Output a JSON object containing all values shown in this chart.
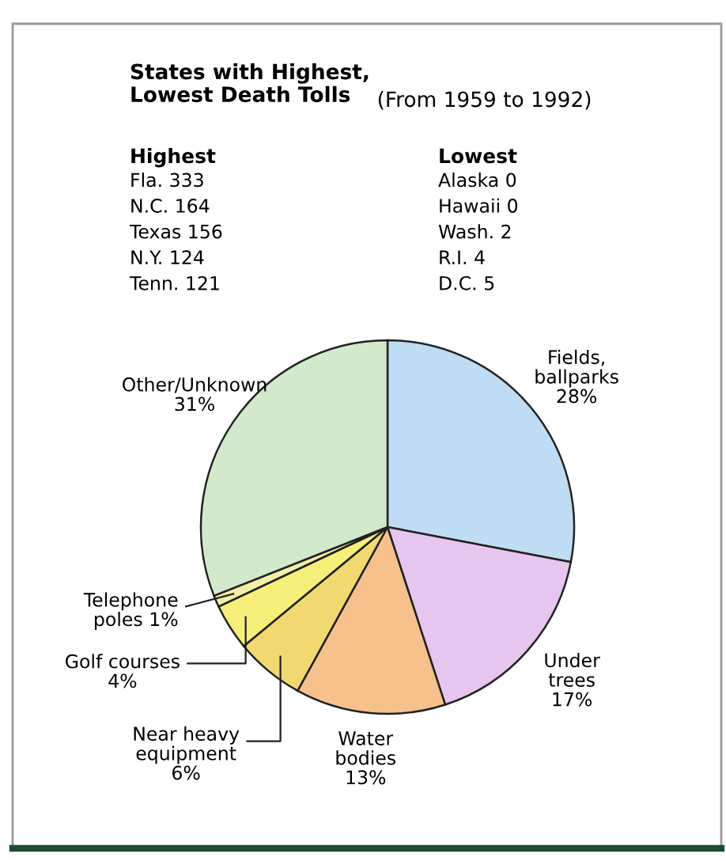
{
  "chart_data": [
    {
      "type": "other",
      "title": "States with Highest,\nLowest Death Tolls",
      "subtitle": "(From 1959 to 1992)",
      "annotations": [
        "Highest",
        "Fla. 333",
        "N.C. 164",
        "Texas 156",
        "N.Y. 124",
        "Tenn. 121",
        "Lowest",
        "Alaska 0",
        "Hawaii 0",
        "Wash. 2",
        "R.I. 4",
        "D.C. 5"
      ]
    },
    {
      "type": "pie",
      "categories": [
        "Fields,\nballparks",
        "Under\ntrees",
        "Water\nbodies",
        "Near heavy\nequipment",
        "Golf courses",
        "Telephone\npoles",
        "Other/Unknown"
      ],
      "values": [
        28,
        17,
        13,
        6,
        4,
        1,
        31
      ],
      "value_labels": [
        "28%",
        "17%",
        "13%",
        "6%",
        "4%",
        "1%",
        "31%"
      ],
      "colors": [
        "#bfdcf3",
        "#e6c6ef",
        "#f7c18e",
        "#f1d870",
        "#f7ef7a",
        "#f2eea8",
        "#d2e9cc"
      ]
    }
  ]
}
